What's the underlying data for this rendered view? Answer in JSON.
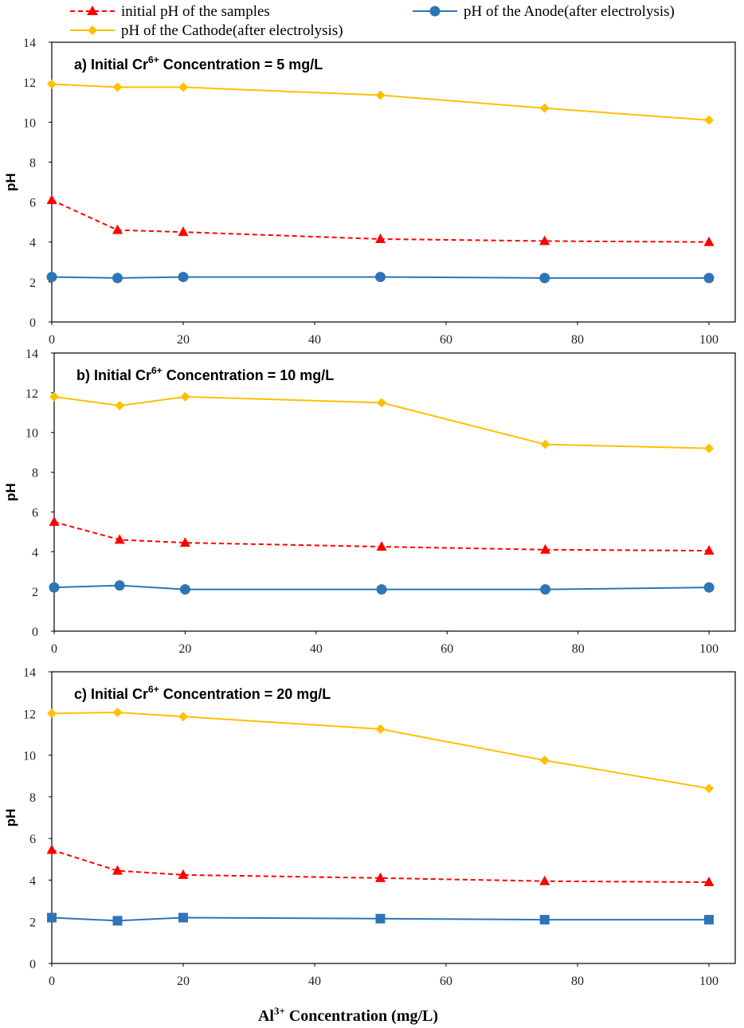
{
  "legend": {
    "initial": "initial pH of the samples",
    "anode": "pH of the Anode(after electrolysis)",
    "cathode": "pH of the Cathode(after electrolysis)"
  },
  "xaxis_label": {
    "prefix": "Al",
    "sup": "3+",
    "suffix": " Concentration (mg/L)"
  },
  "colors": {
    "initial": "#ff0000",
    "anode": "#2e75b6",
    "anode_marker": "#2e75b6",
    "cathode": "#ffc000"
  },
  "chart_data": [
    {
      "type": "line",
      "title_prefix": "a) Initial Cr",
      "title_sup": "6+",
      "title_suffix": " Concentration = 5 mg/L",
      "ylabel": "pH",
      "x": [
        0,
        10,
        20,
        50,
        75,
        100
      ],
      "xticks": [
        0,
        20,
        40,
        60,
        80,
        100
      ],
      "yticks": [
        0,
        2,
        4,
        6,
        8,
        10,
        12,
        14
      ],
      "xlim": [
        0,
        104
      ],
      "ylim": [
        0,
        14
      ],
      "anode_marker": "circle",
      "series": [
        {
          "key": "cathode",
          "name": "pH of the Cathode(after electrolysis)",
          "values": [
            11.9,
            11.75,
            11.75,
            11.35,
            10.7,
            10.1
          ]
        },
        {
          "key": "initial",
          "name": "initial pH of the samples",
          "values": [
            6.1,
            4.6,
            4.5,
            4.15,
            4.05,
            4.0
          ]
        },
        {
          "key": "anode",
          "name": "pH of the Anode(after electrolysis)",
          "values": [
            2.25,
            2.2,
            2.25,
            2.25,
            2.2,
            2.2
          ]
        }
      ]
    },
    {
      "type": "line",
      "title_prefix": "b) Initial Cr",
      "title_sup": "6+",
      "title_suffix": " Concentration = 10 mg/L",
      "ylabel": "pH",
      "x": [
        0,
        10,
        20,
        50,
        75,
        100
      ],
      "xticks": [
        0,
        20,
        40,
        60,
        80,
        100
      ],
      "yticks": [
        0,
        2,
        4,
        6,
        8,
        10,
        12,
        14
      ],
      "xlim": [
        0,
        104
      ],
      "ylim": [
        0,
        14
      ],
      "anode_marker": "circle",
      "series": [
        {
          "key": "cathode",
          "name": "pH of the Cathode(after electrolysis)",
          "values": [
            11.8,
            11.35,
            11.8,
            11.5,
            9.4,
            9.2
          ]
        },
        {
          "key": "initial",
          "name": "initial pH of the samples",
          "values": [
            5.5,
            4.6,
            4.45,
            4.25,
            4.1,
            4.05
          ]
        },
        {
          "key": "anode",
          "name": "pH of the Anode(after electrolysis)",
          "values": [
            2.2,
            2.3,
            2.1,
            2.1,
            2.1,
            2.2
          ]
        }
      ]
    },
    {
      "type": "line",
      "title_prefix": "c) Initial Cr",
      "title_sup": "6+",
      "title_suffix": " Concentration = 20 mg/L",
      "ylabel": "pH",
      "x": [
        0,
        10,
        20,
        50,
        75,
        100
      ],
      "xticks": [
        0,
        20,
        40,
        60,
        80,
        100
      ],
      "yticks": [
        0,
        2,
        4,
        6,
        8,
        10,
        12,
        14
      ],
      "xlim": [
        0,
        104
      ],
      "ylim": [
        0,
        14
      ],
      "anode_marker": "square",
      "series": [
        {
          "key": "cathode",
          "name": "pH of the Cathode(after electrolysis)",
          "values": [
            12.0,
            12.05,
            11.85,
            11.25,
            9.75,
            8.4
          ]
        },
        {
          "key": "initial",
          "name": "initial pH of the samples",
          "values": [
            5.45,
            4.45,
            4.25,
            4.1,
            3.95,
            3.9
          ]
        },
        {
          "key": "anode",
          "name": "pH of the Anode(after electrolysis)",
          "values": [
            2.2,
            2.05,
            2.2,
            2.15,
            2.1,
            2.1
          ]
        }
      ]
    }
  ]
}
